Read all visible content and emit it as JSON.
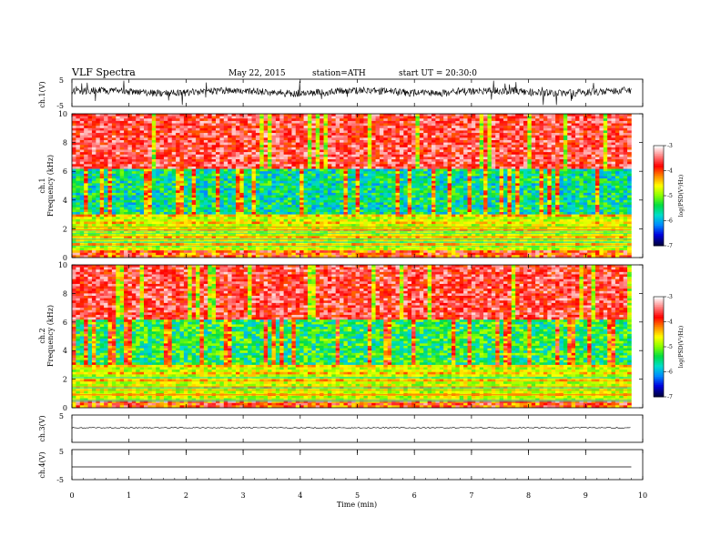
{
  "header": {
    "title": "VLF  Spectra",
    "date": "May 22, 2015",
    "station": "station=ATH",
    "start": "start  UT  =   20:30:0"
  },
  "chart_data": [
    {
      "type": "line",
      "ylabel": "ch.1(V)",
      "ylim": [
        -5,
        5
      ],
      "yticks": [
        "5",
        "-5"
      ],
      "description_level": "dense noisy waveform around 0 V, spikes to ±5 V"
    },
    {
      "type": "heatmap",
      "ylabel_top": "ch.1",
      "ylabel": "Frequency  (kHz)",
      "ylim": [
        0,
        10
      ],
      "yticks": [
        "0",
        "2",
        "4",
        "6",
        "8",
        "10"
      ],
      "colorbar": {
        "label": "log(PSD(V²/Hz)",
        "range": [
          -7,
          -3
        ],
        "ticks": [
          "-3",
          "-4",
          "-5",
          "-6",
          "-7"
        ],
        "colors": [
          "#ffffff",
          "#ff8080",
          "#ff0000",
          "#ff8800",
          "#ffff00",
          "#88ff00",
          "#00dd44",
          "#00ddcc",
          "#0088ff",
          "#0000dd",
          "#000044"
        ]
      }
    },
    {
      "type": "heatmap",
      "ylabel_top": "ch.2",
      "ylabel": "Frequency  (kHz)",
      "ylim": [
        0,
        10
      ],
      "yticks": [
        "0",
        "2",
        "4",
        "6",
        "8",
        "10"
      ],
      "colorbar": {
        "label": "log(PSD(V²/Hz)",
        "range": [
          -7,
          -3
        ],
        "ticks": [
          "-3",
          "-4",
          "-5",
          "-6",
          "-7"
        ]
      }
    },
    {
      "type": "line",
      "ylabel": "ch.3(V)",
      "ylim": [
        -5,
        5
      ],
      "yticks": [
        "5"
      ],
      "description_level": "flat trace near -1 V"
    },
    {
      "type": "line",
      "ylabel": "ch.4(V)",
      "ylim": [
        -5,
        5
      ],
      "yticks": [
        "5",
        "-5"
      ],
      "description_level": "flat trace near 0 V with periodic markers"
    }
  ],
  "xaxis": {
    "label": "Time  (min)",
    "xlim": [
      0,
      10
    ],
    "ticks": [
      "0",
      "1",
      "2",
      "3",
      "4",
      "5",
      "6",
      "7",
      "8",
      "9",
      "10"
    ],
    "data_end": 9.8
  }
}
